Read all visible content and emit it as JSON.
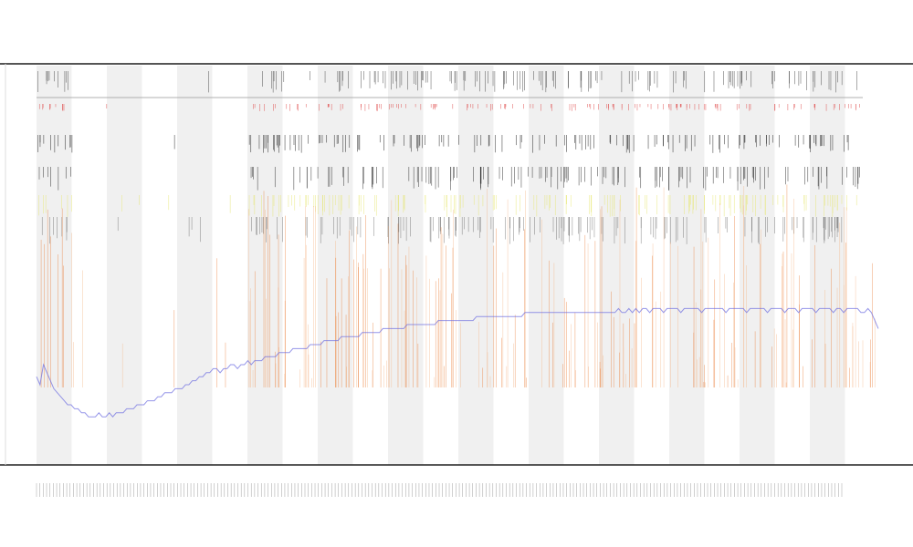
{
  "chart_data": {
    "type": "line",
    "title": "",
    "subtitle_lines": [],
    "xlabel": "",
    "ylabel": "",
    "grid": false,
    "band_count": 12,
    "legend": {
      "placement": "top-left",
      "entries": []
    },
    "x": {
      "min": 0,
      "max": 240
    },
    "ylim": [
      0,
      100
    ],
    "series": [
      {
        "color": "#6a6ae0",
        "values": [
          22,
          20,
          25,
          23,
          21,
          19,
          18,
          17,
          16,
          15,
          15,
          14,
          14,
          13,
          13,
          12,
          12,
          12,
          13,
          12,
          12,
          13,
          12,
          13,
          13,
          13,
          14,
          14,
          14,
          15,
          15,
          15,
          16,
          16,
          16,
          17,
          17,
          18,
          18,
          18,
          19,
          19,
          19,
          20,
          20,
          21,
          21,
          22,
          22,
          23,
          23,
          24,
          24,
          23,
          24,
          24,
          25,
          25,
          24,
          25,
          25,
          26,
          25,
          26,
          26,
          26,
          27,
          27,
          27,
          27,
          28,
          28,
          28,
          28,
          29,
          29,
          29,
          29,
          29,
          30,
          30,
          30,
          30,
          31,
          31,
          31,
          31,
          31,
          32,
          32,
          32,
          32,
          32,
          32,
          33,
          33,
          33,
          33,
          33,
          33,
          34,
          34,
          34,
          34,
          34,
          34,
          34,
          35,
          35,
          35,
          35,
          35,
          35,
          35,
          35,
          35,
          36,
          36,
          36,
          36,
          36,
          36,
          36,
          36,
          36,
          36,
          36,
          37,
          37,
          37,
          37,
          37,
          37,
          37,
          37,
          37,
          37,
          37,
          37,
          37,
          37,
          38,
          38,
          38,
          38,
          38,
          38,
          38,
          38,
          38,
          38,
          38,
          38,
          38,
          38,
          38,
          38,
          38,
          38,
          38,
          38,
          38,
          38,
          38,
          38,
          38,
          38,
          38,
          39,
          38,
          38,
          39,
          38,
          39,
          38,
          39,
          39,
          38,
          39,
          39,
          39,
          38,
          39,
          39,
          39,
          39,
          38,
          39,
          39,
          39,
          39,
          39,
          38,
          39,
          39,
          39,
          39,
          39,
          39,
          38,
          39,
          39,
          39,
          39,
          39,
          38,
          39,
          39,
          39,
          39,
          39,
          38,
          39,
          39,
          39,
          39,
          38,
          39,
          39,
          39,
          38,
          39,
          39,
          39,
          39,
          38,
          39,
          39,
          39,
          39,
          38,
          39,
          39,
          38,
          39,
          39,
          39,
          39,
          38,
          38,
          39,
          38,
          36,
          34
        ]
      }
    ]
  }
}
